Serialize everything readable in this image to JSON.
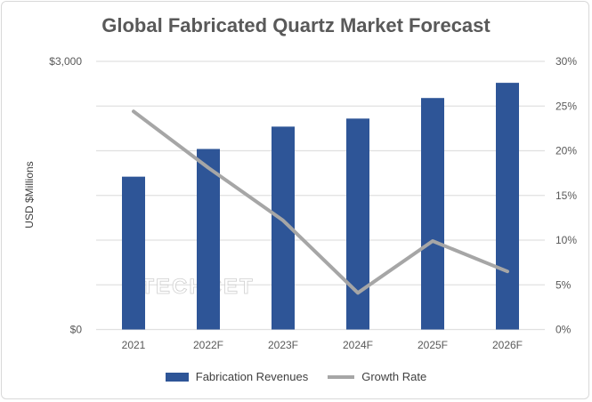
{
  "chart_data": {
    "type": "bar",
    "title": "Global Fabricated Quartz Market Forecast",
    "ylabel": "USD $Millions",
    "xlabel": "",
    "categories": [
      "2021",
      "2022F",
      "2023F",
      "2024F",
      "2025F",
      "2026F"
    ],
    "series": [
      {
        "name": "Fabrication Revenues",
        "type": "bar",
        "axis": "left",
        "color": "#2e5597",
        "values": [
          1710,
          2020,
          2270,
          2360,
          2590,
          2760
        ]
      },
      {
        "name": "Growth Rate",
        "type": "line",
        "axis": "right",
        "color": "#a6a6a6",
        "values": [
          24.4,
          18.1,
          12.2,
          4.1,
          9.9,
          6.5
        ]
      }
    ],
    "ylim_left": [
      0,
      3000
    ],
    "ylim_right": [
      0,
      30
    ],
    "left_tick_labels": [
      "$0",
      "$3,000"
    ],
    "right_tick_labels": [
      "0%",
      "5%",
      "10%",
      "15%",
      "20%",
      "25%",
      "30%"
    ],
    "grid": true,
    "legend": "bottom",
    "watermark": "TECHCET"
  }
}
